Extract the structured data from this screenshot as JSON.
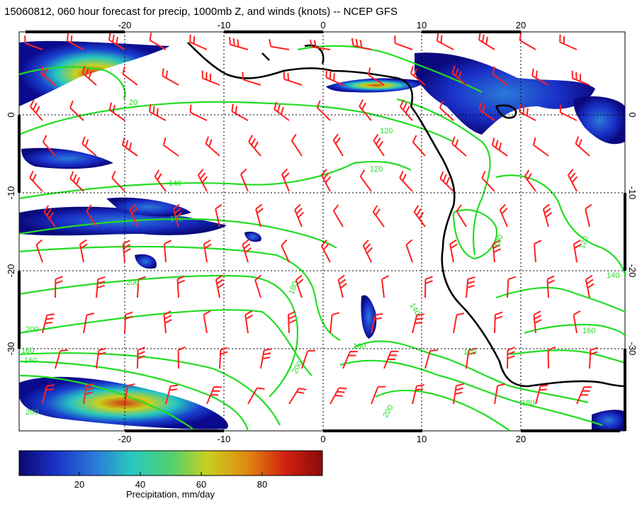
{
  "title": "15060812, 060 hour forecast for precip, 1000mb Z, and winds (knots) -- NCEP GFS",
  "map": {
    "lon_ticks": [
      "-20",
      "-10",
      "0",
      "10",
      "20"
    ],
    "lat_ticks": [
      "0",
      "-10",
      "-20",
      "-30"
    ],
    "contour_labels": [
      "20",
      "120",
      "120",
      "140",
      "160",
      "200",
      "200",
      "180",
      "200",
      "140",
      "120",
      "100",
      "120",
      "140",
      "160",
      "180",
      "200",
      "160",
      "160",
      "200",
      "160"
    ],
    "colors": {
      "coast": "#000000",
      "contour": "#22dd22",
      "wind_barb": "#ff2020",
      "grid": "#000000"
    }
  },
  "colorbar": {
    "ticks": [
      "20",
      "40",
      "60",
      "80"
    ],
    "title": "Precipitation, mm/day",
    "gradient": [
      "#0a0a6e",
      "#1a30c8",
      "#2a7ad8",
      "#28c8c0",
      "#50d070",
      "#c8d020",
      "#e08a10",
      "#d02010",
      "#8a0a0a"
    ]
  }
}
